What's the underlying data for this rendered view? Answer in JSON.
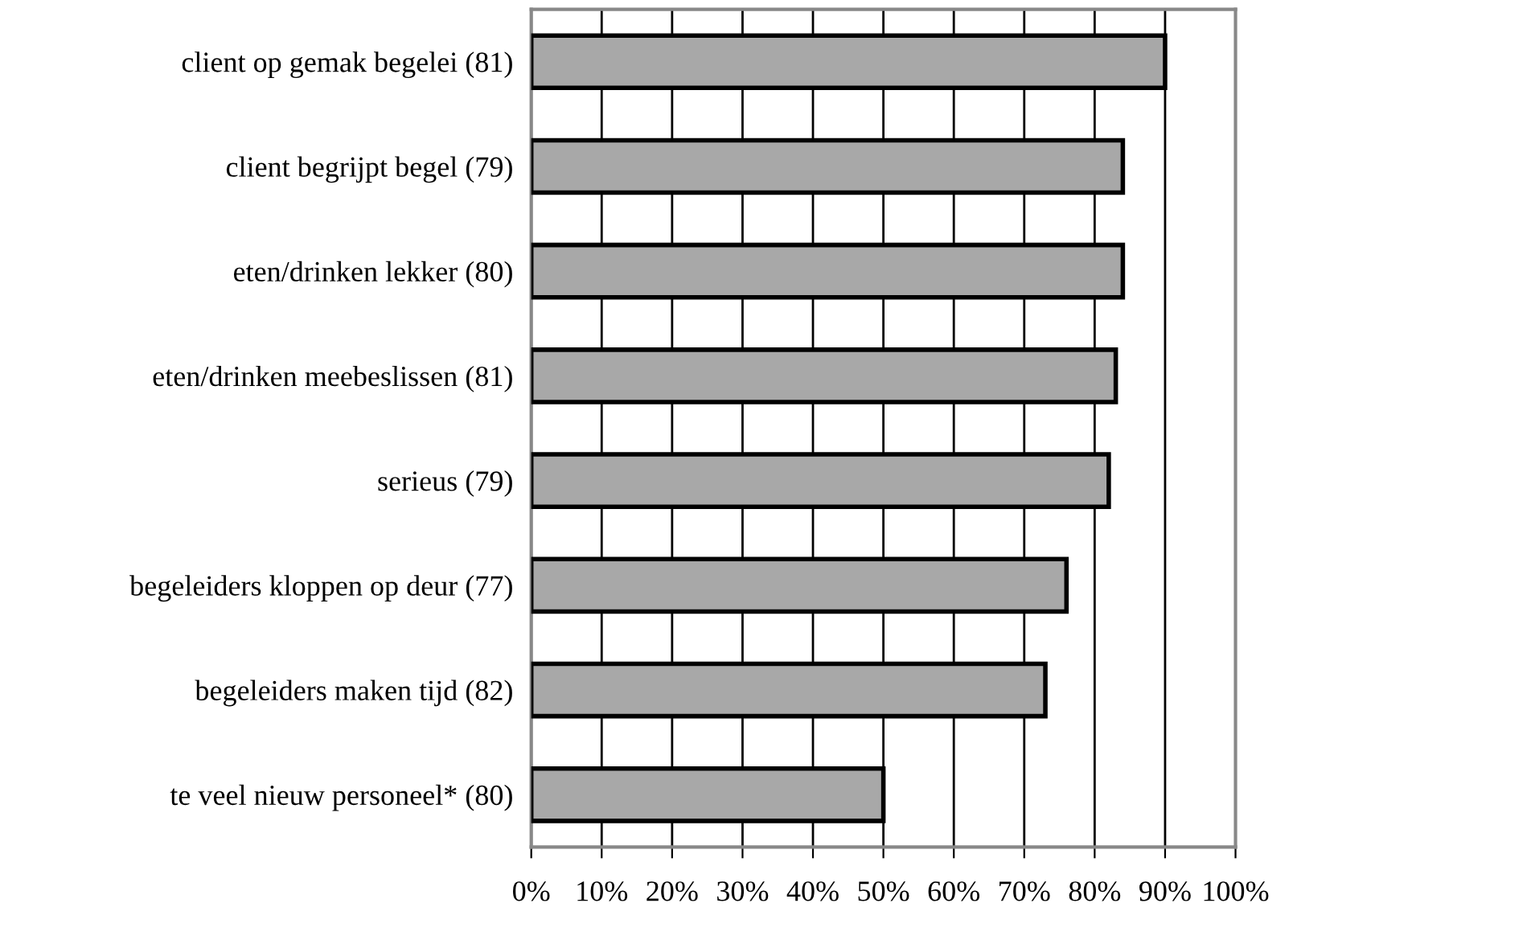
{
  "chart_data": {
    "type": "bar",
    "orientation": "horizontal",
    "categories": [
      "client op gemak begelei (81)",
      "client begrijpt begel (79)",
      "eten/drinken lekker (80)",
      "eten/drinken meebeslissen (81)",
      "serieus (79)",
      "begeleiders kloppen op deur (77)",
      "begeleiders maken tijd (82)",
      "te veel nieuw personeel* (80)"
    ],
    "values": [
      90,
      84,
      84,
      83,
      82,
      76,
      73,
      50
    ],
    "color": "#a8a8a8",
    "xlim": [
      0,
      100
    ],
    "xticks": [
      {
        "value": 0,
        "label": "0%"
      },
      {
        "value": 10,
        "label": "10%"
      },
      {
        "value": 20,
        "label": "20%"
      },
      {
        "value": 30,
        "label": "30%"
      },
      {
        "value": 40,
        "label": "40%"
      },
      {
        "value": 50,
        "label": "50%"
      },
      {
        "value": 60,
        "label": "60%"
      },
      {
        "value": 70,
        "label": "70%"
      },
      {
        "value": 80,
        "label": "80%"
      },
      {
        "value": 90,
        "label": "90%"
      },
      {
        "value": 100,
        "label": "100%"
      }
    ],
    "grid": "x",
    "legend": false
  }
}
